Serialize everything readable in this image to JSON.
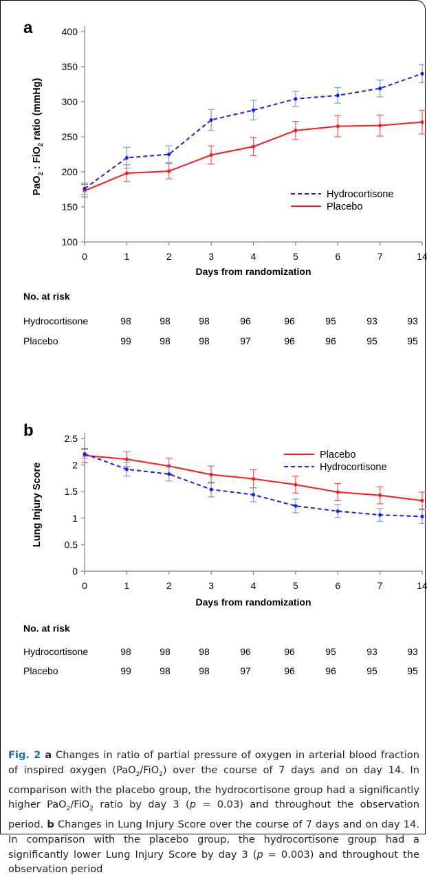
{
  "colors": {
    "hydrocortisone": "#1a1aff",
    "placebo": "#ff1a1a",
    "errorbar_h": "#6fa0d8",
    "errorbar_p": "#ff5050",
    "axis": "#7f7f7f",
    "caption_label": "#1b6aa5"
  },
  "chart_data": [
    {
      "panel": "a",
      "type": "line",
      "ylabel": "PaO₂ : FiO₂ ratio (mmHg)",
      "ylabel_parts": [
        "PaO",
        "2",
        " : FiO",
        "2",
        " ratio (mmHg)"
      ],
      "xlabel": "Days from randomization",
      "categories": [
        "0",
        "1",
        "2",
        "3",
        "4",
        "5",
        "6",
        "7",
        "14"
      ],
      "ylim": [
        100,
        400
      ],
      "yticks": [
        "100",
        "150",
        "200",
        "250",
        "300",
        "350",
        "400"
      ],
      "legend_position": "lower-right",
      "legend_order": [
        "Hydrocortisone",
        "Placebo"
      ],
      "series": [
        {
          "name": "Hydrocortisone",
          "style": "dashed",
          "values": [
            176,
            220,
            225,
            274,
            288,
            304,
            309,
            319,
            340
          ],
          "err": [
            8,
            15,
            12,
            15,
            14,
            11,
            11,
            12,
            13
          ]
        },
        {
          "name": "Placebo",
          "style": "solid",
          "values": [
            173,
            198,
            201,
            224,
            236,
            259,
            265,
            266,
            271
          ],
          "err": [
            9,
            12,
            11,
            13,
            13,
            13,
            15,
            15,
            17
          ]
        }
      ],
      "risk_table": {
        "title": "No. at risk",
        "rows": [
          {
            "label": "Hydrocortisone",
            "values": [
              "98",
              "98",
              "98",
              "96",
              "96",
              "95",
              "93",
              "93"
            ]
          },
          {
            "label": "Placebo",
            "values": [
              "99",
              "98",
              "98",
              "97",
              "96",
              "96",
              "95",
              "95"
            ]
          }
        ]
      }
    },
    {
      "panel": "b",
      "type": "line",
      "ylabel": "Lung Injury Score",
      "ylabel_parts": [
        "Lung Injury Score"
      ],
      "xlabel": "Days from randomization",
      "categories": [
        "0",
        "1",
        "2",
        "3",
        "4",
        "5",
        "6",
        "7",
        "14"
      ],
      "ylim": [
        0,
        2.5
      ],
      "yticks": [
        "0",
        "0.5",
        "1",
        "1.5",
        "2",
        "2.5"
      ],
      "legend_position": "upper-right",
      "legend_order": [
        "Placebo",
        "Hydrocortisone"
      ],
      "series": [
        {
          "name": "Hydrocortisone",
          "style": "dashed",
          "values": [
            2.21,
            1.92,
            1.83,
            1.54,
            1.44,
            1.23,
            1.13,
            1.06,
            1.03
          ],
          "err": [
            0.08,
            0.13,
            0.13,
            0.14,
            0.13,
            0.13,
            0.12,
            0.12,
            0.13
          ]
        },
        {
          "name": "Placebo",
          "style": "solid",
          "values": [
            2.18,
            2.11,
            1.98,
            1.82,
            1.74,
            1.63,
            1.49,
            1.43,
            1.33
          ],
          "err": [
            0.13,
            0.14,
            0.15,
            0.16,
            0.17,
            0.16,
            0.16,
            0.16,
            0.16
          ]
        }
      ],
      "risk_table": {
        "title": "No. at risk",
        "rows": [
          {
            "label": "Hydrocortisone",
            "values": [
              "98",
              "98",
              "98",
              "96",
              "96",
              "95",
              "93",
              "93"
            ]
          },
          {
            "label": "Placebo",
            "values": [
              "99",
              "98",
              "98",
              "97",
              "96",
              "96",
              "95",
              "95"
            ]
          }
        ]
      }
    }
  ],
  "caption": {
    "fig_label": "Fig. 2",
    "segments": [
      {
        "t": " "
      },
      {
        "t": "a",
        "b": true
      },
      {
        "t": " Changes in ratio of partial pressure of oxygen in arterial blood fraction of inspired oxygen (PaO"
      },
      {
        "t": "2",
        "sub": true
      },
      {
        "t": "/FiO"
      },
      {
        "t": "2",
        "sub": true
      },
      {
        "t": ") over the course of 7 days and on day 14. In comparison with the placebo group, the hydrocortisone group had a significantly higher PaO"
      },
      {
        "t": "2",
        "sub": true
      },
      {
        "t": "/FiO"
      },
      {
        "t": "2",
        "sub": true
      },
      {
        "t": " ratio by day 3 ("
      },
      {
        "t": "p",
        "i": true
      },
      {
        "t": " = 0.03) and throughout the observation period. "
      },
      {
        "t": "b",
        "b": true
      },
      {
        "t": " Changes in Lung Injury Score over the course of 7 days and on day 14. In comparison with the placebo group, the hydrocortisone group had a significantly lower Lung Injury Score by day 3 ("
      },
      {
        "t": "p",
        "i": true
      },
      {
        "t": " = 0.003) and throughout the observation period"
      }
    ]
  }
}
